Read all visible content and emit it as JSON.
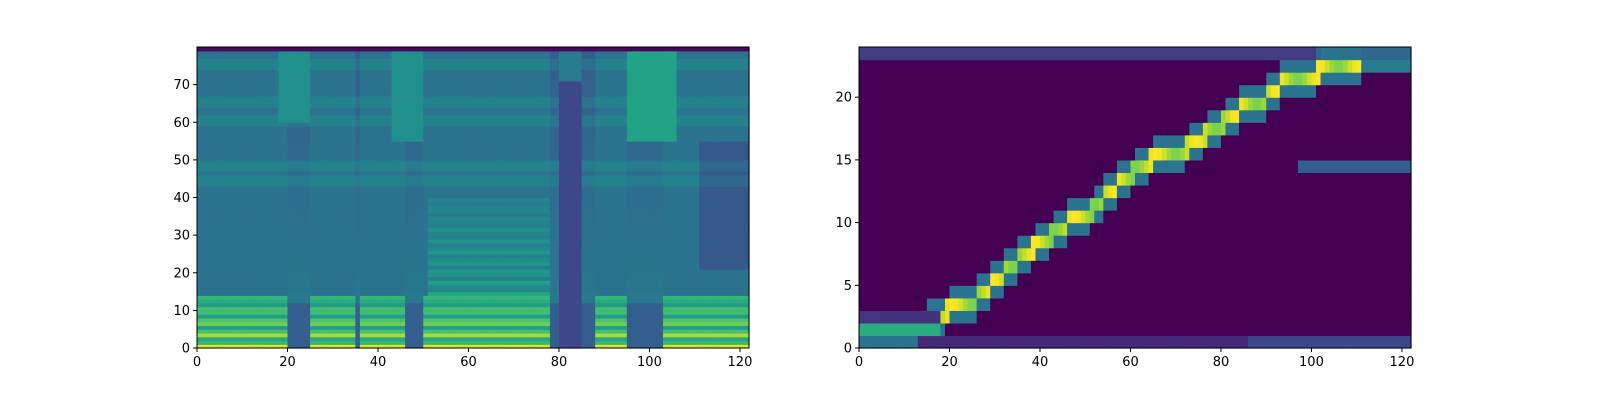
{
  "chart_data": [
    {
      "type": "heatmap",
      "title": "",
      "xlabel": "",
      "ylabel": "",
      "xlim": [
        0,
        122
      ],
      "ylim": [
        0,
        80
      ],
      "x_ticks": [
        "0",
        "20",
        "40",
        "60",
        "80",
        "100",
        "120"
      ],
      "y_ticks": [
        "0",
        "10",
        "20",
        "30",
        "40",
        "50",
        "60",
        "70"
      ],
      "grid": false,
      "colormap": "viridis",
      "x_count": 122,
      "y_count": 80,
      "voiced_segments": [
        [
          0,
          19
        ],
        [
          25,
          34
        ],
        [
          36,
          45
        ],
        [
          50,
          77
        ],
        [
          88,
          94
        ],
        [
          103,
          121
        ]
      ],
      "silent_columns": [
        [
          80,
          84
        ]
      ],
      "formant_bands": [
        3,
        7,
        10,
        13,
        44,
        48,
        60,
        65,
        75
      ]
    },
    {
      "type": "heatmap",
      "title": "",
      "xlabel": "",
      "ylabel": "",
      "xlim": [
        0,
        122
      ],
      "ylim": [
        0,
        24
      ],
      "x_ticks": [
        "0",
        "20",
        "40",
        "60",
        "80",
        "100",
        "120"
      ],
      "y_ticks": [
        "0",
        "5",
        "10",
        "15",
        "20"
      ],
      "grid": false,
      "colormap": "viridis",
      "x_count": 122,
      "y_count": 24,
      "alignment_path": [
        [
          0,
          1
        ],
        [
          9,
          1
        ],
        [
          18,
          2
        ],
        [
          20,
          3
        ],
        [
          24,
          3
        ],
        [
          27,
          4
        ],
        [
          30,
          5
        ],
        [
          33,
          6
        ],
        [
          36,
          7
        ],
        [
          40,
          8
        ],
        [
          44,
          9
        ],
        [
          47,
          10
        ],
        [
          50,
          10
        ],
        [
          52,
          11
        ],
        [
          55,
          12
        ],
        [
          58,
          13
        ],
        [
          62,
          14
        ],
        [
          66,
          15
        ],
        [
          70,
          15
        ],
        [
          74,
          16
        ],
        [
          78,
          17
        ],
        [
          82,
          18
        ],
        [
          85,
          19
        ],
        [
          88,
          19
        ],
        [
          91,
          20
        ],
        [
          94,
          21
        ],
        [
          98,
          21
        ],
        [
          104,
          22
        ],
        [
          110,
          22
        ]
      ]
    }
  ]
}
